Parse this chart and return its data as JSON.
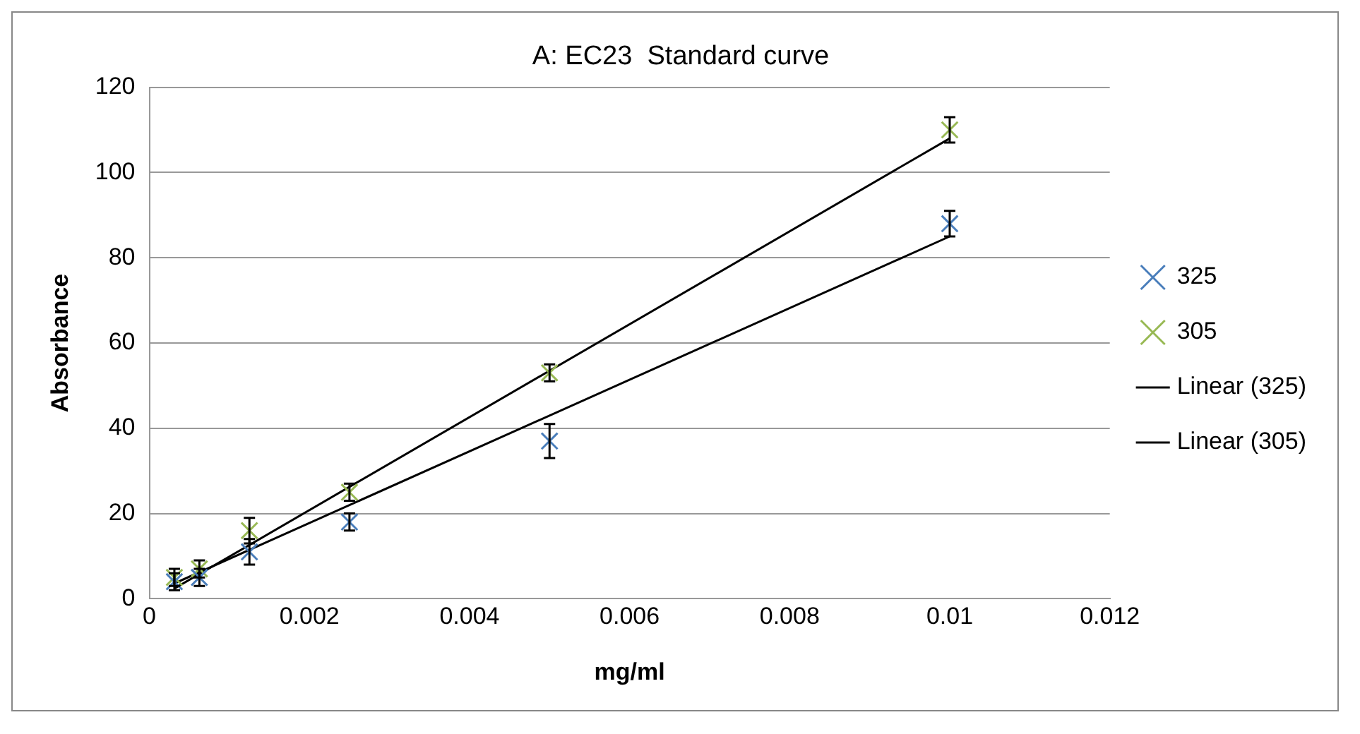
{
  "chart_data": {
    "type": "scatter",
    "title": "A: EC23  Standard curve",
    "xlabel": "mg/ml",
    "ylabel": "Absorbance",
    "x": [
      0.0003125,
      0.000625,
      0.00125,
      0.0025,
      0.005,
      0.01
    ],
    "series": [
      {
        "name": "325",
        "color": "#4a7ebb",
        "values": [
          4,
          5,
          11,
          18,
          37,
          88
        ],
        "marker": "cross",
        "errors": [
          2,
          2,
          3,
          2,
          4,
          3
        ]
      },
      {
        "name": "305",
        "color": "#98b954",
        "values": [
          5,
          7,
          16,
          25,
          53,
          110
        ],
        "marker": "cross",
        "errors": [
          2,
          2,
          3,
          2,
          2,
          3
        ]
      },
      {
        "name": "Linear (325)",
        "type": "line",
        "color": "#000000",
        "values": [
          3.6,
          null,
          null,
          null,
          null,
          85
        ]
      },
      {
        "name": "Linear (305)",
        "type": "line",
        "color": "#000000",
        "values": [
          2.4,
          null,
          null,
          null,
          null,
          108
        ]
      }
    ],
    "xlim": [
      0,
      0.012
    ],
    "xticks": [
      0,
      0.002,
      0.004,
      0.006,
      0.008,
      0.01,
      0.012
    ],
    "ylim": [
      0,
      120
    ],
    "yticks": [
      0,
      20,
      40,
      60,
      80,
      100,
      120
    ],
    "grid": "y",
    "legend": "right"
  }
}
